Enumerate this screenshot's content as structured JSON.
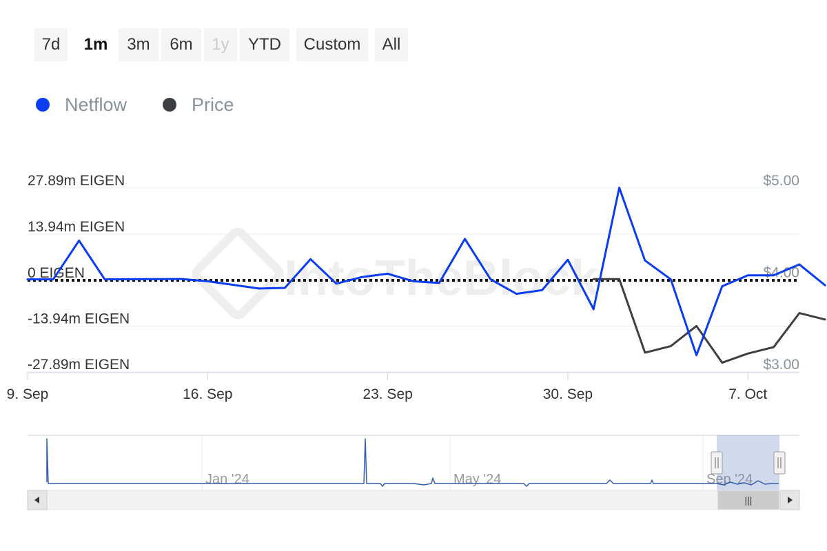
{
  "range_selector": {
    "buttons": [
      {
        "label": "7d",
        "state": "normal"
      },
      {
        "label": "1m",
        "state": "active"
      },
      {
        "label": "3m",
        "state": "normal"
      },
      {
        "label": "6m",
        "state": "normal"
      },
      {
        "label": "1y",
        "state": "disabled"
      },
      {
        "label": "YTD",
        "state": "normal"
      },
      {
        "label": "Custom",
        "state": "normal"
      },
      {
        "label": "All",
        "state": "normal"
      }
    ]
  },
  "legend": {
    "items": [
      {
        "label": "Netflow",
        "color": "#0a3cf0"
      },
      {
        "label": "Price",
        "color": "#3d3f42"
      }
    ]
  },
  "watermark": "IntoTheBlock",
  "chart_data": {
    "type": "line",
    "x_labels": [
      "9. Sep",
      "16. Sep",
      "23. Sep",
      "30. Sep",
      "7. Oct"
    ],
    "y_left_labels": [
      "27.89m EIGEN",
      "13.94m EIGEN",
      "0 EIGEN",
      "-13.94m EIGEN",
      "-27.89m EIGEN"
    ],
    "y_right_labels": [
      "$5.00",
      "$4.00",
      "$3.00"
    ],
    "y_left_range": [
      -27.89,
      27.89
    ],
    "y_right_range": [
      3.0,
      5.0
    ],
    "y_left_unit": "m EIGEN",
    "grid": true,
    "zero_line": "dotted",
    "series": [
      {
        "name": "Netflow",
        "color": "#0a3cf0",
        "axis": "left",
        "points": [
          [
            "2024-09-09",
            0.3
          ],
          [
            "2024-09-10",
            0.3
          ],
          [
            "2024-09-11",
            12.0
          ],
          [
            "2024-09-12",
            0.3
          ],
          [
            "2024-09-15",
            0.4
          ],
          [
            "2024-09-16",
            -0.3
          ],
          [
            "2024-09-18",
            -2.5
          ],
          [
            "2024-09-19",
            -2.3
          ],
          [
            "2024-09-20",
            6.4
          ],
          [
            "2024-09-21",
            -1.0
          ],
          [
            "2024-09-22",
            1.0
          ],
          [
            "2024-09-23",
            2.0
          ],
          [
            "2024-09-24",
            -0.3
          ],
          [
            "2024-09-25",
            -0.8
          ],
          [
            "2024-09-26",
            12.5
          ],
          [
            "2024-09-27",
            0.3
          ],
          [
            "2024-09-28",
            -4.1
          ],
          [
            "2024-09-29",
            -3.0
          ],
          [
            "2024-09-30",
            6.2
          ],
          [
            "2024-10-01",
            -8.8
          ],
          [
            "2024-10-02",
            28.0
          ],
          [
            "2024-10-03",
            6.0
          ],
          [
            "2024-10-04",
            0.3
          ],
          [
            "2024-10-05",
            -22.8
          ],
          [
            "2024-10-06",
            -1.8
          ],
          [
            "2024-10-07",
            1.5
          ],
          [
            "2024-10-08",
            1.5
          ],
          [
            "2024-10-09",
            4.8
          ],
          [
            "2024-10-10",
            -1.5
          ]
        ]
      },
      {
        "name": "Price",
        "color": "#3d3f42",
        "axis": "right",
        "points": [
          [
            "2024-10-01",
            4.01
          ],
          [
            "2024-10-02",
            4.01
          ],
          [
            "2024-10-03",
            3.21
          ],
          [
            "2024-10-04",
            3.28
          ],
          [
            "2024-10-05",
            3.5
          ],
          [
            "2024-10-06",
            3.1
          ],
          [
            "2024-10-07",
            3.2
          ],
          [
            "2024-10-08",
            3.27
          ],
          [
            "2024-10-09",
            3.64
          ],
          [
            "2024-10-10",
            3.57
          ]
        ]
      }
    ]
  },
  "navigator": {
    "labels": [
      "Jan '24",
      "May '24",
      "Sep '24"
    ],
    "handle_label": "|||"
  }
}
